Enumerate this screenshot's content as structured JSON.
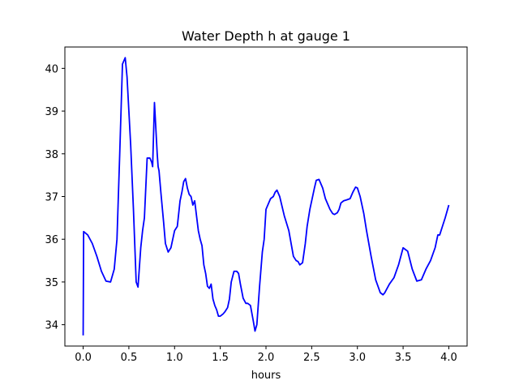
{
  "chart_data": {
    "type": "line",
    "title": "Water Depth h at gauge 1",
    "xlabel": "hours",
    "ylabel": "",
    "xlim": [
      -0.2,
      4.2
    ],
    "ylim": [
      33.5,
      40.5
    ],
    "xticks": [
      0.0,
      0.5,
      1.0,
      1.5,
      2.0,
      2.5,
      3.0,
      3.5,
      4.0
    ],
    "xtick_labels": [
      "0.0",
      "0.5",
      "1.0",
      "1.5",
      "2.0",
      "2.5",
      "3.0",
      "3.5",
      "4.0"
    ],
    "yticks": [
      34,
      35,
      36,
      37,
      38,
      39,
      40
    ],
    "ytick_labels": [
      "34",
      "35",
      "36",
      "37",
      "38",
      "39",
      "40"
    ],
    "grid": false,
    "series": [
      {
        "color": "#0000ff",
        "x": [
          0.0,
          0.005,
          0.05,
          0.1,
          0.15,
          0.2,
          0.25,
          0.3,
          0.34,
          0.37,
          0.4,
          0.43,
          0.46,
          0.48,
          0.5,
          0.52,
          0.55,
          0.58,
          0.6,
          0.63,
          0.65,
          0.67,
          0.7,
          0.73,
          0.75,
          0.76,
          0.78,
          0.8,
          0.81,
          0.82,
          0.83,
          0.85,
          0.88,
          0.9,
          0.93,
          0.96,
          1.0,
          1.03,
          1.06,
          1.08,
          1.1,
          1.12,
          1.14,
          1.16,
          1.18,
          1.2,
          1.22,
          1.24,
          1.26,
          1.28,
          1.3,
          1.32,
          1.34,
          1.36,
          1.38,
          1.4,
          1.42,
          1.44,
          1.46,
          1.48,
          1.5,
          1.53,
          1.55,
          1.58,
          1.6,
          1.62,
          1.65,
          1.68,
          1.7,
          1.72,
          1.75,
          1.78,
          1.8,
          1.83,
          1.86,
          1.88,
          1.9,
          1.93,
          1.96,
          1.98,
          2.0,
          2.03,
          2.05,
          2.08,
          2.1,
          2.12,
          2.15,
          2.2,
          2.25,
          2.3,
          2.33,
          2.35,
          2.37,
          2.4,
          2.43,
          2.45,
          2.48,
          2.5,
          2.53,
          2.55,
          2.58,
          2.62,
          2.65,
          2.7,
          2.73,
          2.75,
          2.78,
          2.8,
          2.82,
          2.85,
          2.88,
          2.92,
          2.95,
          2.98,
          3.0,
          3.03,
          3.07,
          3.1,
          3.15,
          3.2,
          3.25,
          3.28,
          3.3,
          3.35,
          3.4,
          3.45,
          3.5,
          3.55,
          3.6,
          3.65,
          3.7,
          3.75,
          3.8,
          3.85,
          3.87,
          3.88,
          3.9,
          3.93,
          3.96,
          4.0
        ],
        "values": [
          33.75,
          36.18,
          36.1,
          35.9,
          35.6,
          35.25,
          35.02,
          35.0,
          35.3,
          36.0,
          38.0,
          40.1,
          40.25,
          39.8,
          39.0,
          38.2,
          36.7,
          35.0,
          34.88,
          35.8,
          36.2,
          36.5,
          37.9,
          37.9,
          37.8,
          37.7,
          39.2,
          38.4,
          38.0,
          37.7,
          37.6,
          37.1,
          36.4,
          35.9,
          35.7,
          35.8,
          36.2,
          36.3,
          36.9,
          37.1,
          37.35,
          37.42,
          37.2,
          37.05,
          37.0,
          36.8,
          36.9,
          36.55,
          36.2,
          36.0,
          35.85,
          35.4,
          35.2,
          34.9,
          34.85,
          34.95,
          34.6,
          34.45,
          34.35,
          34.2,
          34.2,
          34.25,
          34.3,
          34.4,
          34.6,
          35.0,
          35.25,
          35.25,
          35.2,
          34.95,
          34.62,
          34.5,
          34.5,
          34.45,
          34.1,
          33.85,
          34.0,
          34.9,
          35.7,
          36.0,
          36.7,
          36.85,
          36.95,
          37.0,
          37.1,
          37.15,
          37.0,
          36.55,
          36.2,
          35.6,
          35.5,
          35.48,
          35.4,
          35.45,
          35.9,
          36.3,
          36.7,
          36.9,
          37.2,
          37.38,
          37.4,
          37.2,
          36.95,
          36.7,
          36.6,
          36.58,
          36.62,
          36.7,
          36.85,
          36.9,
          36.92,
          36.95,
          37.1,
          37.22,
          37.2,
          37.0,
          36.6,
          36.2,
          35.6,
          35.05,
          34.75,
          34.7,
          34.75,
          34.95,
          35.1,
          35.4,
          35.8,
          35.72,
          35.3,
          35.02,
          35.05,
          35.3,
          35.5,
          35.8,
          36.0,
          36.1,
          36.1,
          36.3,
          36.5,
          36.8
        ]
      }
    ]
  }
}
